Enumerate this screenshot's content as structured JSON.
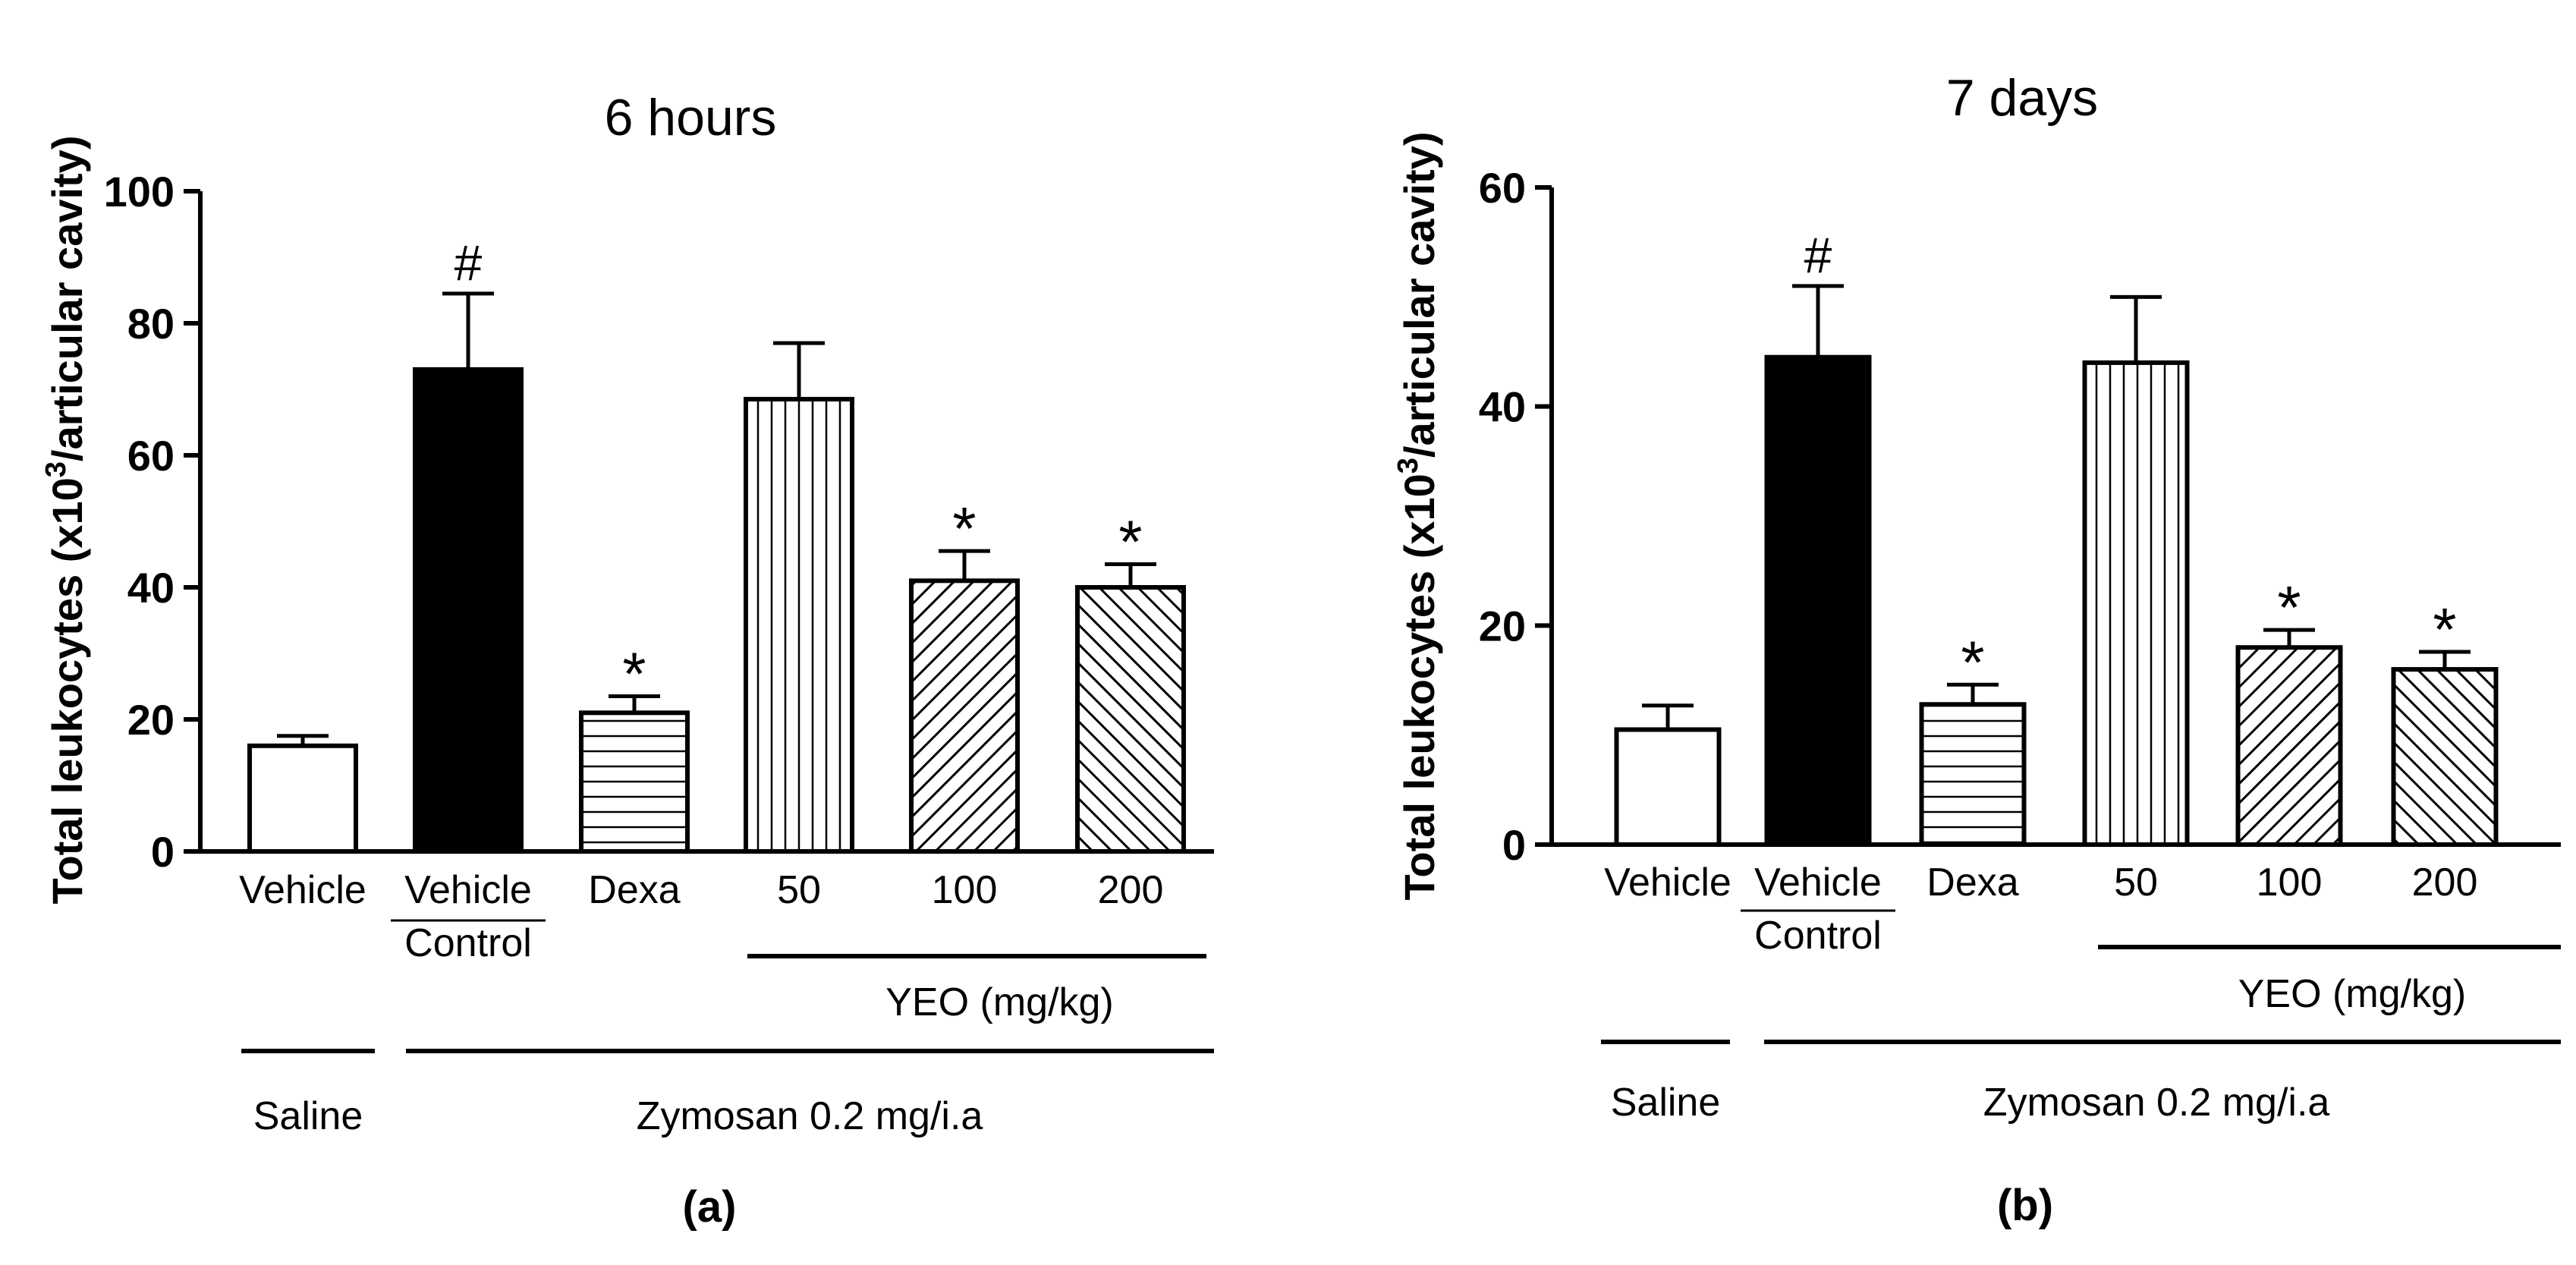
{
  "figure": {
    "bottom_label_left": "Saline",
    "bottom_label_right": "Zymosan 0.2 mg/i.a",
    "yeo_group_label": "YEO (mg/kg)"
  },
  "chart_data": [
    {
      "type": "bar",
      "panel_label": "(a)",
      "title": "6 hours",
      "ylabel_main": "Total leukocytes (x10",
      "ylabel_sup": "3",
      "ylabel_rest": "/articular cavity)",
      "ylim": [
        0,
        100
      ],
      "yticks": [
        0,
        20,
        40,
        60,
        80,
        100
      ],
      "categories": [
        "Vehicle",
        "Vehicle Control",
        "Dexa",
        "50",
        "100",
        "200"
      ],
      "category_lines": [
        [
          "Vehicle"
        ],
        [
          "Vehicle",
          "Control"
        ],
        [
          "Dexa"
        ],
        [
          "50"
        ],
        [
          "100"
        ],
        [
          "200"
        ]
      ],
      "values": [
        16,
        73,
        21,
        68.5,
        41,
        40
      ],
      "errors": [
        1.5,
        11.5,
        2.5,
        8.5,
        4.5,
        3.5
      ],
      "annotations": [
        "",
        "#",
        "*",
        "",
        "*",
        "*"
      ],
      "patterns": [
        "white",
        "black",
        "horizontal",
        "vertical",
        "diagonal-up",
        "diagonal-down"
      ]
    },
    {
      "type": "bar",
      "panel_label": "(b)",
      "title": "7 days",
      "ylabel_main": "Total leukocytes (x10",
      "ylabel_sup": "3",
      "ylabel_rest": "/articular cavity)",
      "ylim": [
        0,
        60
      ],
      "yticks": [
        0,
        20,
        40,
        60
      ],
      "categories": [
        "Vehicle",
        "Vehicle Control",
        "Dexa",
        "50",
        "100",
        "200"
      ],
      "category_lines": [
        [
          "Vehicle"
        ],
        [
          "Vehicle",
          "Control"
        ],
        [
          "Dexa"
        ],
        [
          "50"
        ],
        [
          "100"
        ],
        [
          "200"
        ]
      ],
      "values": [
        10.5,
        44.5,
        12.8,
        44,
        18,
        16
      ],
      "errors": [
        2.2,
        6.5,
        1.8,
        6,
        1.6,
        1.6
      ],
      "annotations": [
        "",
        "#",
        "*",
        "",
        "*",
        "*"
      ],
      "patterns": [
        "white",
        "black",
        "horizontal",
        "vertical",
        "diagonal-up",
        "diagonal-down"
      ]
    }
  ]
}
